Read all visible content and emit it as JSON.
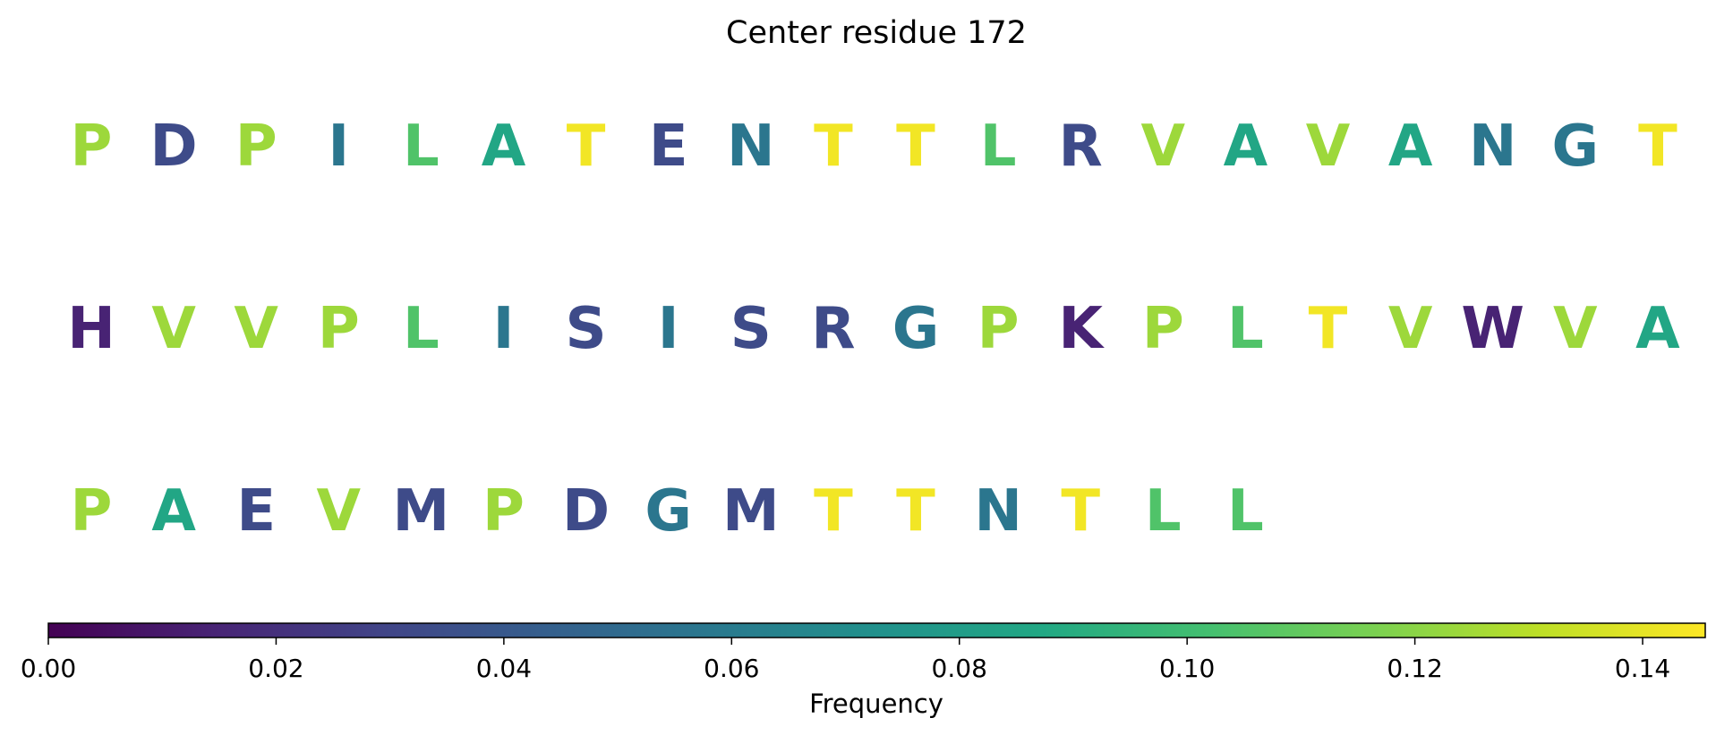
{
  "chart_data": {
    "type": "heatmap",
    "title": "Center residue 172",
    "rows": [
      {
        "residues": [
          "P",
          "D",
          "P",
          "I",
          "L",
          "A",
          "T",
          "E",
          "N",
          "T",
          "T",
          "L",
          "R",
          "V",
          "A",
          "V",
          "A",
          "N",
          "G",
          "T"
        ],
        "values": [
          0.124,
          0.033,
          0.124,
          0.057,
          0.105,
          0.086,
          0.143,
          0.033,
          0.057,
          0.143,
          0.143,
          0.105,
          0.033,
          0.124,
          0.086,
          0.124,
          0.086,
          0.057,
          0.057,
          0.143
        ]
      },
      {
        "residues": [
          "H",
          "V",
          "V",
          "P",
          "L",
          "I",
          "S",
          "I",
          "S",
          "R",
          "G",
          "P",
          "K",
          "P",
          "L",
          "T",
          "V",
          "W",
          "V",
          "A"
        ],
        "values": [
          0.014,
          0.124,
          0.124,
          0.124,
          0.105,
          0.057,
          0.033,
          0.057,
          0.033,
          0.033,
          0.057,
          0.124,
          0.014,
          0.124,
          0.105,
          0.143,
          0.124,
          0.014,
          0.124,
          0.086
        ]
      },
      {
        "residues": [
          "P",
          "A",
          "E",
          "V",
          "M",
          "P",
          "D",
          "G",
          "M",
          "T",
          "T",
          "N",
          "T",
          "L",
          "L"
        ],
        "values": [
          0.124,
          0.086,
          0.033,
          0.124,
          0.033,
          0.124,
          0.033,
          0.057,
          0.033,
          0.143,
          0.143,
          0.057,
          0.143,
          0.105,
          0.105
        ]
      }
    ],
    "colorbar": {
      "label": "Frequency",
      "range": [
        0,
        0.1455
      ],
      "ticks": [
        0.0,
        0.02,
        0.04,
        0.06,
        0.08,
        0.1,
        0.12,
        0.14
      ],
      "tick_labels": [
        "0.00",
        "0.02",
        "0.04",
        "0.06",
        "0.08",
        "0.10",
        "0.12",
        "0.14"
      ],
      "colormap": "viridis",
      "orientation": "horizontal",
      "placement": "bottom"
    }
  }
}
